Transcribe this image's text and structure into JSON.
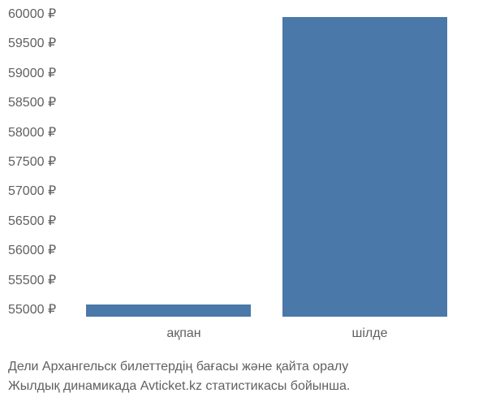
{
  "chart": {
    "type": "bar",
    "categories": [
      "ақпан",
      "шілде"
    ],
    "values": [
      55200,
      59850
    ],
    "bar_color": "#4a78a8",
    "ylim": [
      55000,
      60000
    ],
    "ytick_step": 500,
    "yticks": [
      "60000 ₽",
      "59500 ₽",
      "59000 ₽",
      "58500 ₽",
      "58000 ₽",
      "57500 ₽",
      "57000 ₽",
      "56500 ₽",
      "56000 ₽",
      "55500 ₽",
      "55000 ₽"
    ],
    "background_color": "#ffffff",
    "text_color": "#606060",
    "label_fontsize": 16
  },
  "caption": {
    "line1": "Дели Архангельск билеттердің бағасы және қайта оралу",
    "line2": "Жылдық динамикада Avticket.kz статистикасы бойынша."
  }
}
